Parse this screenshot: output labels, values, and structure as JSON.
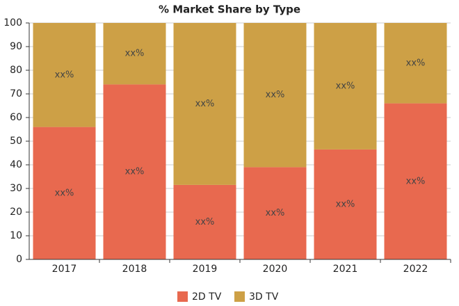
{
  "chart_data": {
    "type": "stacked-bar",
    "title": "% Market Share by Type",
    "categories": [
      "2017",
      "2018",
      "2019",
      "2020",
      "2021",
      "2022"
    ],
    "series": [
      {
        "name": "2D TV",
        "color": "#e8694f",
        "values": [
          56,
          74,
          31.5,
          39,
          46.5,
          66
        ],
        "labels": [
          "xx%",
          "xx%",
          "xx%",
          "xx%",
          "xx%",
          "xx%"
        ]
      },
      {
        "name": "3D TV",
        "color": "#cda046",
        "values": [
          44,
          26,
          68.5,
          61,
          53.5,
          34
        ],
        "labels": [
          "xx%",
          "xx%",
          "xx%",
          "xx%",
          "xx%",
          "xx%"
        ]
      }
    ],
    "ylim": [
      0,
      100
    ],
    "yticks": [
      0,
      10,
      20,
      30,
      40,
      50,
      60,
      70,
      80,
      90,
      100
    ],
    "grid": true,
    "legend": "bottom"
  }
}
